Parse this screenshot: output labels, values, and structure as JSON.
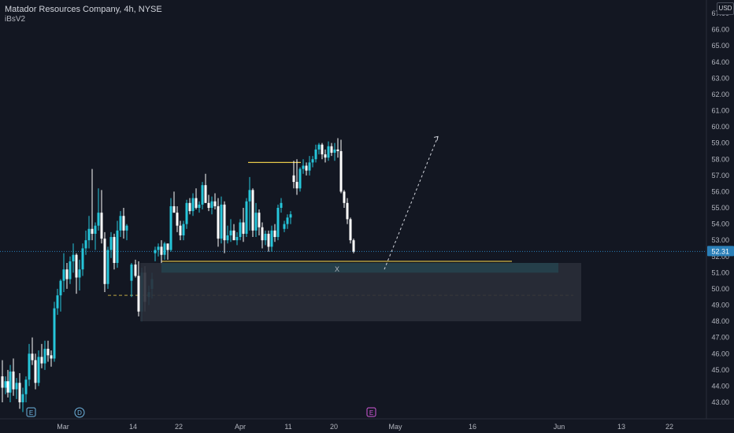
{
  "header": {
    "title": "Matador Resources Company, 4h, NYSE",
    "indicator": "iBsV2"
  },
  "axis": {
    "currency": "USD",
    "y_ticks": [
      "67.00",
      "66.00",
      "65.00",
      "64.00",
      "63.00",
      "62.00",
      "61.00",
      "60.00",
      "59.00",
      "58.00",
      "57.00",
      "56.00",
      "55.00",
      "54.00",
      "53.00",
      "52.00",
      "51.00",
      "50.00",
      "49.00",
      "48.00",
      "47.00",
      "46.00",
      "45.00",
      "44.00",
      "43.00"
    ],
    "x_ticks": [
      "Mar",
      "14",
      "22",
      "Apr",
      "11",
      "20",
      "May",
      "16",
      "Jun",
      "13",
      "22"
    ],
    "last_price": "52.31"
  },
  "markers": {
    "earnings": "E",
    "dividend": "D",
    "earnings_upcoming": "E",
    "zone_label": "X"
  },
  "colors": {
    "background": "#131722",
    "up": "#26c6da",
    "down": "#ffffff",
    "level": "#e6c84a",
    "zone": "#2a2e39",
    "zone_top": "#26414c",
    "last_price": "#2a7fb8"
  },
  "chart_data": {
    "type": "candlestick",
    "symbol": "Matador Resources Company",
    "timeframe": "4h",
    "exchange": "NYSE",
    "ylim": [
      42.5,
      67.2
    ],
    "last_price": 52.31,
    "levels": [
      {
        "name": "resistance",
        "value": 57.8
      },
      {
        "name": "support",
        "value": 51.7
      },
      {
        "name": "dashed",
        "value": 49.6
      }
    ],
    "zone": {
      "top": 51.6,
      "bottom": 48.0
    },
    "projection": {
      "from": 51.2,
      "to": 59.4
    }
  }
}
